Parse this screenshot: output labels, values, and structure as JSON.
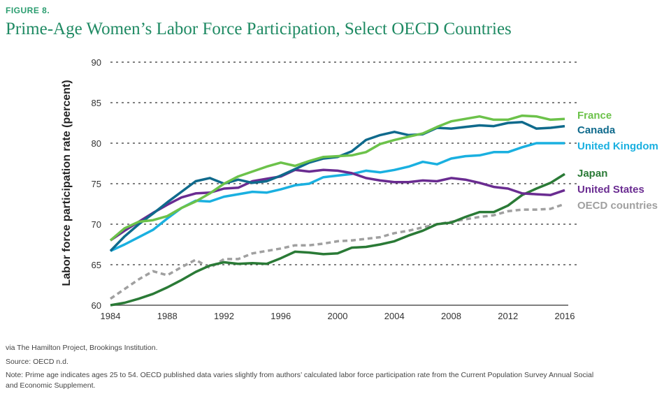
{
  "figure_label": "FIGURE 8.",
  "chart_data": {
    "type": "line",
    "title": "Prime-Age Women’s Labor Force Participation, Select OECD Countries",
    "xlabel": "",
    "ylabel": "Labor force participation rate (percent)",
    "xlim": [
      1984,
      2016
    ],
    "ylim": [
      60,
      90
    ],
    "xticks": [
      1984,
      1988,
      1992,
      1996,
      2000,
      2004,
      2008,
      2012,
      2016
    ],
    "yticks": [
      60,
      65,
      70,
      75,
      80,
      85,
      90
    ],
    "grid": "horizontal dashed",
    "legend": "right, inline labels",
    "x": [
      1984,
      1985,
      1986,
      1987,
      1988,
      1989,
      1990,
      1991,
      1992,
      1993,
      1994,
      1995,
      1996,
      1997,
      1998,
      1999,
      2000,
      2001,
      2002,
      2003,
      2004,
      2005,
      2006,
      2007,
      2008,
      2009,
      2010,
      2011,
      2012,
      2013,
      2014,
      2015,
      2016
    ],
    "series": [
      {
        "name": "France",
        "color": "#6cc24a",
        "dashed": false,
        "values": [
          68,
          69.5,
          70.3,
          70.5,
          71,
          72,
          72.8,
          73.8,
          75,
          75.9,
          76.5,
          77.1,
          77.6,
          77.2,
          77.8,
          78.3,
          78.4,
          78.5,
          78.9,
          79.9,
          80.4,
          80.8,
          81.2,
          82,
          82.7,
          83,
          83.3,
          82.9,
          82.9,
          83.4,
          83.3,
          82.9,
          83
        ]
      },
      {
        "name": "Canada",
        "color": "#0f6a8c",
        "dashed": false,
        "values": [
          66.7,
          68.5,
          70,
          71.3,
          72.7,
          74,
          75.3,
          75.7,
          75,
          75.5,
          75.1,
          75.3,
          76,
          76.8,
          77.6,
          78.1,
          78.3,
          79,
          80.4,
          81,
          81.4,
          81,
          81.1,
          81.9,
          81.8,
          82,
          82.2,
          82.1,
          82.5,
          82.6,
          81.8,
          81.9,
          82.1
        ]
      },
      {
        "name": "United Kingdom",
        "color": "#1ab0e0",
        "dashed": false,
        "values": [
          66.7,
          67.5,
          68.4,
          69.3,
          70.7,
          72,
          72.9,
          72.8,
          73.4,
          73.7,
          74,
          73.9,
          74.3,
          74.8,
          75,
          75.8,
          76,
          76.2,
          76.6,
          76.4,
          76.7,
          77.1,
          77.7,
          77.4,
          78.1,
          78.4,
          78.5,
          78.9,
          78.9,
          79.5,
          80,
          80,
          80
        ]
      },
      {
        "name": "Japan",
        "color": "#2a7a36",
        "dashed": false,
        "values": [
          60,
          60.3,
          60.8,
          61.4,
          62.2,
          63.1,
          64.1,
          64.9,
          65.3,
          65.1,
          65.2,
          65.1,
          65.8,
          66.6,
          66.5,
          66.3,
          66.4,
          67.1,
          67.2,
          67.5,
          67.9,
          68.6,
          69.2,
          70,
          70.2,
          70.9,
          71.5,
          71.5,
          72.3,
          73.6,
          74.4,
          75.1,
          76.2
        ]
      },
      {
        "name": "United States",
        "color": "#6a2c91",
        "dashed": false,
        "values": [
          68,
          69.2,
          70.3,
          71.4,
          72.4,
          73.3,
          73.8,
          73.9,
          74.4,
          74.5,
          75.3,
          75.6,
          75.9,
          76.7,
          76.5,
          76.7,
          76.6,
          76.3,
          75.7,
          75.4,
          75.2,
          75.2,
          75.4,
          75.3,
          75.7,
          75.5,
          75.1,
          74.6,
          74.4,
          73.8,
          73.7,
          73.6,
          74.2
        ]
      },
      {
        "name": "OECD countries",
        "color": "#a0a0a0",
        "dashed": true,
        "values": [
          60.8,
          62,
          63.2,
          64.2,
          63.7,
          64.7,
          65.6,
          64.6,
          65.7,
          65.7,
          66.4,
          66.7,
          67,
          67.4,
          67.4,
          67.6,
          67.9,
          68,
          68.2,
          68.4,
          68.9,
          69.2,
          69.6,
          70,
          70.3,
          70.6,
          70.9,
          71.1,
          71.6,
          71.8,
          71.8,
          71.9,
          72.5
        ]
      }
    ],
    "label_positions_order": [
      "France",
      "Canada",
      "United Kingdom",
      "Japan",
      "United States",
      "OECD countries"
    ]
  },
  "footnotes": {
    "via": "via The Hamilton Project, Brookings Institution.",
    "source": "Source: OECD n.d.",
    "note": "Note: Prime age indicates ages 25 to 54. OECD published data varies slightly from authors’ calculated labor force participation rate from the Current Population Survey Annual Social and Economic Supplement."
  }
}
